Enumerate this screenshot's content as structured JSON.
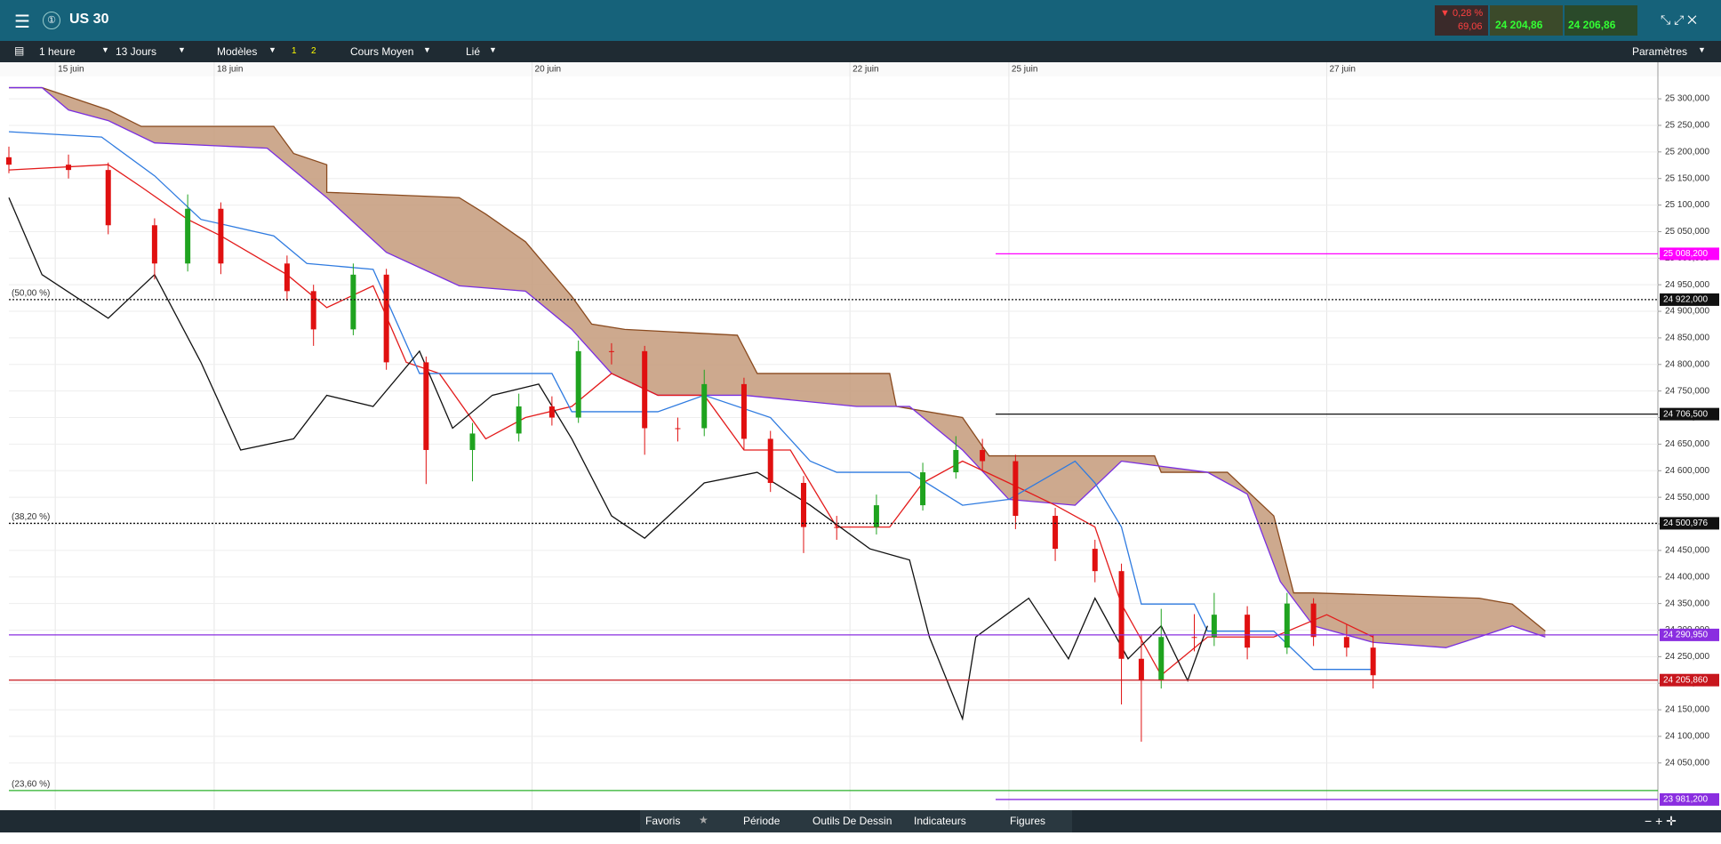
{
  "header": {
    "instrument": "US 30",
    "change_pct": "▼ 0,28 %",
    "change_abs": "69,06",
    "sell": "24 204,86",
    "buy": "24 206,86"
  },
  "toolbar": [
    "1 heure",
    "13 Jours",
    "Modèles",
    "1",
    "2",
    "Cours Moyen",
    "Lié",
    "Paramètres"
  ],
  "footer_tabs": [
    "Favoris",
    "Période",
    "Outils De Dessin",
    "Indicateurs",
    "Figures"
  ],
  "chart_data": {
    "type": "candlestick",
    "xlim": [
      -7,
      242
    ],
    "xticks": [
      {
        "value": 0,
        "label": "15 juin"
      },
      {
        "value": 24,
        "label": "18 juin"
      },
      {
        "value": 72,
        "label": "20 juin"
      },
      {
        "value": 120,
        "label": "22 juin"
      },
      {
        "value": 144,
        "label": "25 juin"
      },
      {
        "value": 192,
        "label": "27 juin"
      }
    ],
    "ylim": [
      23961,
      25342
    ],
    "yticks": [
      {
        "value": 25300,
        "label": "25 300,000"
      },
      {
        "value": 25250,
        "label": "25 250,000"
      },
      {
        "value": 25200,
        "label": "25 200,000"
      },
      {
        "value": 25150,
        "label": "25 150,000"
      },
      {
        "value": 25100,
        "label": "25 100,000"
      },
      {
        "value": 25050,
        "label": "25 050,000"
      },
      {
        "value": 25000,
        "label": "25 000,000"
      },
      {
        "value": 24950,
        "label": "24 950,000"
      },
      {
        "value": 24900,
        "label": "24 900,000"
      },
      {
        "value": 24850,
        "label": "24 850,000"
      },
      {
        "value": 24800,
        "label": "24 800,000"
      },
      {
        "value": 24750,
        "label": "24 750,000"
      },
      {
        "value": 24700,
        "label": "24 700,000"
      },
      {
        "value": 24650,
        "label": "24 650,000"
      },
      {
        "value": 24600,
        "label": "24 600,000"
      },
      {
        "value": 24550,
        "label": "24 550,000"
      },
      {
        "value": 24500,
        "label": "24 500,000"
      },
      {
        "value": 24450,
        "label": "24 450,000"
      },
      {
        "value": 24400,
        "label": "24 400,000"
      },
      {
        "value": 24350,
        "label": "24 350,000"
      },
      {
        "value": 24300,
        "label": "24 300,000"
      },
      {
        "value": 24250,
        "label": "24 250,000"
      },
      {
        "value": 24200,
        "label": "24 200,000"
      },
      {
        "value": 24150,
        "label": "24 150,000"
      },
      {
        "value": 24100,
        "label": "24 100,000"
      },
      {
        "value": 24050,
        "label": "24 050,000"
      }
    ],
    "grid": true,
    "up_color": "#1fa31f",
    "down_color": "#e01010",
    "candles": {
      "x": [
        -7,
        2,
        8,
        15,
        20,
        25,
        35,
        39,
        45,
        50,
        56,
        63,
        70,
        75,
        79,
        84,
        89,
        94,
        98,
        104,
        108,
        113,
        118,
        124,
        131,
        136,
        140,
        145,
        151,
        157,
        161,
        164,
        167,
        172,
        175,
        180,
        186,
        190,
        195,
        199
      ],
      "open": [
        25190,
        25176,
        25166,
        25062,
        24990,
        25093,
        24990,
        24938,
        24866,
        24969,
        24804,
        24639,
        24670,
        24721,
        24700,
        24825,
        24825,
        24680,
        24680,
        24763,
        24660,
        24577,
        24494,
        24494,
        24535,
        24597,
        24639,
        24618,
        24515,
        24453,
        24411,
        24246,
        24205,
        24287,
        24287,
        24329,
        24267,
        24350,
        24287,
        24267
      ],
      "high": [
        25210,
        25195,
        25180,
        25075,
        25120,
        25105,
        25005,
        24950,
        24990,
        24980,
        24815,
        24690,
        24745,
        24740,
        24845,
        24840,
        24835,
        24700,
        24790,
        24775,
        24675,
        24590,
        24515,
        24555,
        24615,
        24665,
        24660,
        24630,
        24530,
        24470,
        24425,
        24290,
        24340,
        24330,
        24370,
        24345,
        24370,
        24360,
        24310,
        24290
      ],
      "low": [
        25160,
        25150,
        25045,
        24960,
        24975,
        24970,
        24920,
        24835,
        24855,
        24790,
        24575,
        24580,
        24655,
        24685,
        24690,
        24800,
        24630,
        24655,
        24665,
        24640,
        24560,
        24445,
        24470,
        24480,
        24525,
        24585,
        24600,
        24490,
        24430,
        24390,
        24160,
        24090,
        24190,
        24260,
        24270,
        24245,
        24255,
        24270,
        24250,
        24190
      ],
      "close": [
        25176,
        25166,
        25062,
        24990,
        25093,
        24990,
        24938,
        24866,
        24969,
        24804,
        24639,
        24670,
        24721,
        24700,
        24825,
        24825,
        24680,
        24680,
        24763,
        24660,
        24577,
        24494,
        24494,
        24535,
        24597,
        24639,
        24618,
        24515,
        24453,
        24411,
        24246,
        24205,
        24287,
        24287,
        24329,
        24267,
        24350,
        24287,
        24267,
        24215
      ]
    },
    "lines": [
      {
        "color": "#e31b1b",
        "x": [
          -7,
          8,
          13,
          20,
          25,
          35,
          41,
          48,
          53,
          58,
          65,
          71,
          78,
          84,
          91,
          98,
          104,
          111,
          118,
          126,
          131,
          137,
          144,
          151,
          157,
          161,
          167,
          174,
          184,
          192,
          199
        ],
        "values": [
          25166,
          25176,
          25134,
          25073,
          25042,
          24969,
          24907,
          24948,
          24804,
          24783,
          24660,
          24700,
          24721,
          24783,
          24742,
          24742,
          24639,
          24639,
          24494,
          24494,
          24577,
          24618,
          24577,
          24535,
          24494,
          24349,
          24215,
          24287,
          24287,
          24329,
          24287
        ]
      },
      {
        "color": "#2f7be0",
        "x": [
          -7,
          7,
          15,
          22,
          33,
          38,
          48,
          55,
          61,
          75,
          78,
          91,
          98,
          108,
          114,
          118,
          129,
          137,
          144,
          154,
          157,
          161,
          164,
          172,
          174,
          184,
          190,
          199
        ],
        "values": [
          25238,
          25228,
          25155,
          25073,
          25042,
          24990,
          24979,
          24783,
          24783,
          24783,
          24711,
          24711,
          24742,
          24700,
          24618,
          24597,
          24597,
          24535,
          24546,
          24618,
          24577,
          24494,
          24349,
          24349,
          24298,
          24298,
          24226,
          24226
        ]
      },
      {
        "color": "#111111",
        "x": [
          -7,
          -2,
          8,
          15,
          22,
          28,
          36,
          41,
          48,
          55,
          60,
          66,
          73,
          78,
          84,
          89,
          98,
          106,
          114,
          123,
          129,
          132,
          137,
          139,
          147,
          153,
          157,
          162,
          167,
          171,
          174
        ],
        "values": [
          25114,
          24969,
          24887,
          24969,
          24804,
          24639,
          24660,
          24742,
          24721,
          24825,
          24680,
          24742,
          24763,
          24660,
          24515,
          24473,
          24577,
          24597,
          24535,
          24453,
          24432,
          24287,
          24133,
          24287,
          24360,
          24246,
          24360,
          24246,
          24308,
          24205,
          24308
        ]
      }
    ],
    "cloud": {
      "color": "#c49a7a",
      "a": {
        "color": "#7a2ee0",
        "x": [
          -7,
          -2,
          2,
          8,
          15,
          32,
          41,
          50,
          61,
          71,
          78,
          84,
          91,
          104,
          121,
          129,
          137,
          144,
          154,
          161,
          174,
          180,
          185,
          190,
          199,
          210,
          215,
          220,
          225
        ],
        "values": [
          25321,
          25321,
          25279,
          25259,
          25217,
          25207,
          25114,
          25011,
          24948,
          24938,
          24866,
          24783,
          24742,
          24742,
          24721,
          24721,
          24639,
          24546,
          24535,
          24618,
          24597,
          24556,
          24391,
          24308,
          24277,
          24267,
          24287,
          24308,
          24287
        ]
      },
      "b": {
        "color": "#8a4a1e",
        "x": [
          -7,
          -2,
          8,
          13,
          33,
          36,
          41,
          41,
          61,
          65,
          71,
          78,
          81,
          86,
          103,
          106,
          126,
          127,
          137,
          141,
          166,
          167,
          177,
          184,
          187,
          190,
          215,
          220,
          225
        ],
        "values": [
          25321,
          25321,
          25279,
          25248,
          25248,
          25197,
          25176,
          25124,
          25114,
          25083,
          25031,
          24928,
          24876,
          24866,
          24855,
          24783,
          24783,
          24721,
          24700,
          24628,
          24628,
          24597,
          24597,
          24515,
          24370,
          24370,
          24360,
          24349,
          24298
        ]
      }
    },
    "levels": [
      {
        "value": 25008.2,
        "label": "25 008,200",
        "color": "#ff00ff",
        "from": 142,
        "style": "solid"
      },
      {
        "value": 24922,
        "label": "24 922,000",
        "fib_label": "(50,00 %)",
        "color": "#111111",
        "from": -7,
        "style": "dotted"
      },
      {
        "value": 24706.5,
        "label": "24 706,500",
        "color": "#111111",
        "from": 142,
        "style": "solid"
      },
      {
        "value": 24500.976,
        "label": "24 500,976",
        "fib_label": "(38,20 %)",
        "color": "#111111",
        "from": -7,
        "style": "dotted"
      },
      {
        "value": 24290.95,
        "label": "24 290,950",
        "color": "#8a2ee0",
        "from": -7,
        "style": "solid"
      },
      {
        "value": 24205.86,
        "label": "24 205,860",
        "color": "#c8161d",
        "from": -7,
        "style": "solid"
      },
      {
        "value": 23998,
        "fib_label": "(23,60 %)",
        "color": "#2ab02a",
        "from": -7,
        "style": "solid"
      },
      {
        "value": 23981.2,
        "label": "23 981,200",
        "color": "#8a2ee0",
        "from": 142,
        "style": "solid"
      }
    ]
  }
}
